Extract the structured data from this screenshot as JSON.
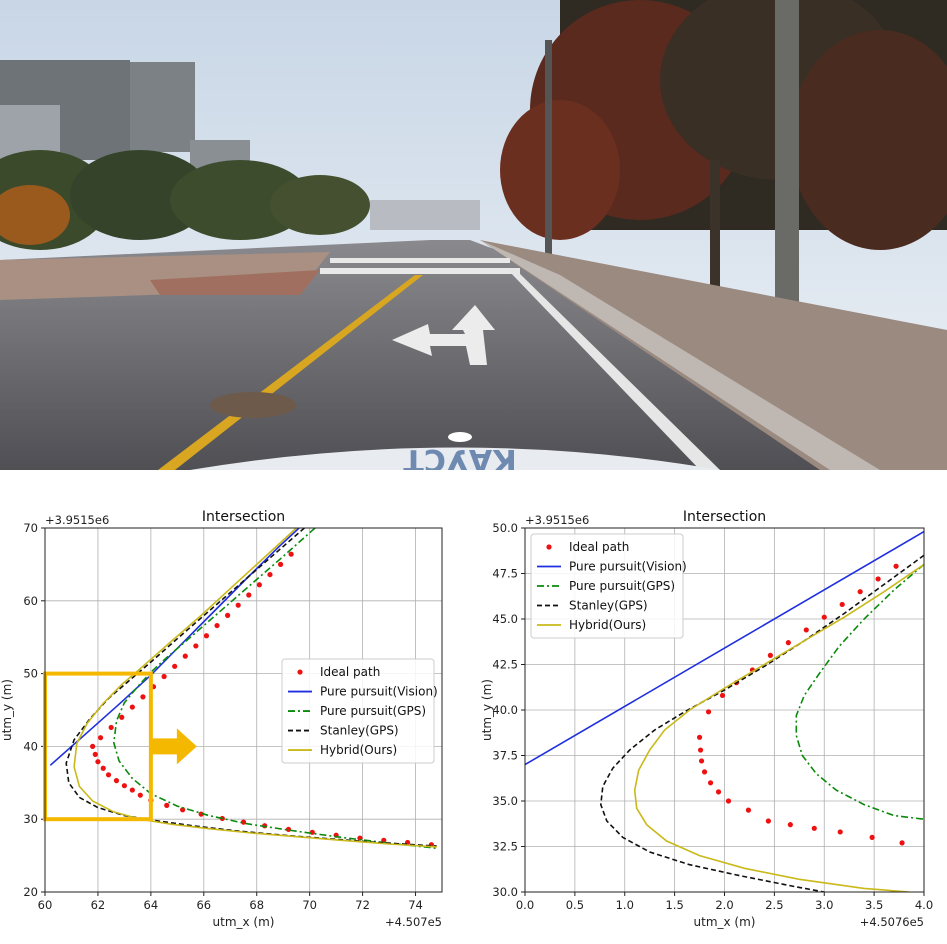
{
  "photo": {
    "road_marking_icon": "left-straight-arrow-icon",
    "vehicle_badge_text": "КАУСТ"
  },
  "chart_data": [
    {
      "type": "line",
      "title": "Intersection",
      "xlabel": "utm_x (m)",
      "ylabel": "utm_y (m)",
      "x_offset_label": "+4.507e5",
      "y_offset_label": "+3.9515e6",
      "xlim": [
        60,
        75
      ],
      "ylim": [
        20,
        70
      ],
      "xticks": [
        "60",
        "62",
        "64",
        "66",
        "68",
        "70",
        "72",
        "74"
      ],
      "yticks": [
        "20",
        "30",
        "40",
        "50",
        "60",
        "70"
      ],
      "grid": true,
      "legend_position": "center-right",
      "legend": [
        "Ideal path",
        "Pure pursuit(Vision)",
        "Pure pursuit(GPS)",
        "Stanley(GPS)",
        "Hybrid(Ours)"
      ],
      "zoom_box": {
        "x0": 60,
        "x1": 64,
        "y0": 30,
        "y1": 50,
        "color": "#f5b800"
      },
      "series": [
        {
          "name": "Ideal path",
          "style": "dots",
          "color": "#ee1111",
          "x": [
            61.8,
            61.9,
            62.0,
            62.2,
            62.4,
            62.7,
            63.0,
            63.3,
            63.6,
            64.0,
            64.6,
            65.2,
            65.9,
            66.7,
            67.5,
            68.3,
            69.2,
            70.1,
            71.0,
            71.9,
            72.8,
            73.7,
            74.6,
            62.1,
            62.5,
            62.9,
            63.3,
            63.7,
            64.1,
            64.5,
            64.9,
            65.3,
            65.7,
            66.1,
            66.5,
            66.9,
            67.3,
            67.7,
            68.1,
            68.5,
            68.9,
            69.3
          ],
          "y": [
            40.0,
            38.9,
            37.9,
            37.0,
            36.1,
            35.3,
            34.6,
            34.0,
            33.3,
            32.6,
            31.9,
            31.3,
            30.7,
            30.1,
            29.6,
            29.1,
            28.6,
            28.2,
            27.8,
            27.4,
            27.1,
            26.8,
            26.5,
            41.2,
            42.6,
            44.0,
            45.4,
            46.8,
            48.2,
            49.6,
            51.0,
            52.4,
            53.8,
            55.2,
            56.6,
            58.0,
            59.4,
            60.8,
            62.2,
            63.6,
            65.0,
            66.4
          ]
        },
        {
          "name": "Pure pursuit(Vision)",
          "style": "solid",
          "color": "#1f2fe0",
          "x": [
            60.2,
            61.5,
            62.8,
            64.0,
            65.2,
            66.4,
            67.6,
            68.8,
            69.6
          ],
          "y": [
            37.4,
            41.6,
            45.8,
            49.8,
            54.2,
            58.6,
            63.0,
            67.3,
            70.0
          ]
        },
        {
          "name": "Pure pursuit(GPS)",
          "style": "dashdot",
          "color": "#0a8a0a",
          "x": [
            70.2,
            69.0,
            67.8,
            66.6,
            65.4,
            64.6,
            64.0,
            63.5,
            63.0,
            62.7,
            62.6,
            62.8,
            63.3,
            64.0,
            65.0,
            66.2,
            67.6,
            69.2,
            71.0,
            72.8,
            74.8
          ],
          "y": [
            70.0,
            66.1,
            62.3,
            58.5,
            54.7,
            52.2,
            50.2,
            48.2,
            46.0,
            43.5,
            40.5,
            38.0,
            35.6,
            33.5,
            31.8,
            30.5,
            29.4,
            28.5,
            27.6,
            26.8,
            26.0
          ]
        },
        {
          "name": "Stanley(GPS)",
          "style": "dashed",
          "color": "#111111",
          "x": [
            69.8,
            68.6,
            67.4,
            66.2,
            65.0,
            64.0,
            63.2,
            62.4,
            61.7,
            61.1,
            60.8,
            60.9,
            61.3,
            62.0,
            63.0,
            64.2,
            65.6,
            67.2,
            69.0,
            70.8,
            72.6,
            74.8
          ],
          "y": [
            70.0,
            66.2,
            62.4,
            58.6,
            54.8,
            51.6,
            49.1,
            46.6,
            43.8,
            40.9,
            37.7,
            35.0,
            33.0,
            31.6,
            30.5,
            29.8,
            29.1,
            28.4,
            27.8,
            27.3,
            26.8,
            26.3
          ]
        },
        {
          "name": "Hybrid(Ours)",
          "style": "solid",
          "color": "#c9b91a",
          "x": [
            69.5,
            68.3,
            67.1,
            65.9,
            64.7,
            63.7,
            62.9,
            62.2,
            61.6,
            61.2,
            61.1,
            61.3,
            61.8,
            62.6,
            63.6,
            64.8,
            66.2,
            67.8,
            69.5,
            71.2,
            73.0,
            74.8
          ],
          "y": [
            70.0,
            66.0,
            62.0,
            58.0,
            54.2,
            51.0,
            48.5,
            45.9,
            43.2,
            40.4,
            37.2,
            34.5,
            32.5,
            31.0,
            30.0,
            29.3,
            28.7,
            28.1,
            27.6,
            27.1,
            26.6,
            26.2
          ]
        }
      ]
    },
    {
      "type": "line",
      "title": "Intersection",
      "xlabel": "utm_x (m)",
      "ylabel": "utm_y (m)",
      "x_offset_label": "+4.5076e5",
      "y_offset_label": "+3.9515e6",
      "xlim": [
        0,
        4
      ],
      "ylim": [
        30,
        50
      ],
      "xticks": [
        "0.0",
        "0.5",
        "1.0",
        "1.5",
        "2.0",
        "2.5",
        "3.0",
        "3.5",
        "4.0"
      ],
      "yticks": [
        "30.0",
        "32.5",
        "35.0",
        "37.5",
        "40.0",
        "42.5",
        "45.0",
        "47.5",
        "50.0"
      ],
      "grid": true,
      "legend_position": "upper-left",
      "legend": [
        "Ideal path",
        "Pure pursuit(Vision)",
        "Pure pursuit(GPS)",
        "Stanley(GPS)",
        "Hybrid(Ours)"
      ],
      "series": [
        {
          "name": "Ideal path",
          "style": "dots",
          "color": "#ee1111",
          "x": [
            1.75,
            1.76,
            1.77,
            1.8,
            1.86,
            1.94,
            2.04,
            2.24,
            2.44,
            2.66,
            2.9,
            3.16,
            3.48,
            3.78,
            1.84,
            1.98,
            2.12,
            2.28,
            2.46,
            2.64,
            2.82,
            3.0,
            3.18,
            3.36,
            3.54,
            3.72
          ],
          "y": [
            38.5,
            37.8,
            37.2,
            36.6,
            36.0,
            35.5,
            35.0,
            34.5,
            33.9,
            33.7,
            33.5,
            33.3,
            33.0,
            32.7,
            39.9,
            40.8,
            41.5,
            42.2,
            43.0,
            43.7,
            44.4,
            45.1,
            45.8,
            46.5,
            47.2,
            47.9
          ]
        },
        {
          "name": "Pure pursuit(Vision)",
          "style": "solid",
          "color": "#1f2fe0",
          "x": [
            0.0,
            4.0
          ],
          "y": [
            37.0,
            49.8
          ]
        },
        {
          "name": "Pure pursuit(GPS)",
          "style": "dashdot",
          "color": "#0a8a0a",
          "x": [
            4.0,
            3.7,
            3.4,
            3.15,
            2.95,
            2.8,
            2.72,
            2.72,
            2.78,
            2.92,
            3.12,
            3.4,
            3.7,
            4.0
          ],
          "y": [
            48.0,
            46.6,
            45.0,
            43.5,
            42.0,
            40.8,
            39.7,
            38.6,
            37.5,
            36.5,
            35.6,
            34.8,
            34.2,
            34.0
          ]
        },
        {
          "name": "Stanley(GPS)",
          "style": "dashed",
          "color": "#111111",
          "x": [
            4.0,
            3.6,
            3.2,
            2.8,
            2.4,
            2.0,
            1.6,
            1.3,
            1.05,
            0.88,
            0.78,
            0.76,
            0.82,
            0.98,
            1.25,
            1.65,
            2.15,
            2.7,
            3.0
          ],
          "y": [
            48.5,
            46.9,
            45.3,
            43.8,
            42.4,
            41.1,
            39.9,
            38.9,
            37.8,
            36.8,
            35.8,
            34.8,
            33.9,
            33.0,
            32.2,
            31.5,
            30.9,
            30.3,
            30.0
          ]
        },
        {
          "name": "Hybrid(Ours)",
          "style": "solid",
          "color": "#c9b91a",
          "x": [
            4.0,
            3.6,
            3.2,
            2.8,
            2.4,
            2.0,
            1.65,
            1.4,
            1.25,
            1.14,
            1.1,
            1.12,
            1.22,
            1.42,
            1.75,
            2.2,
            2.75,
            3.4,
            3.85
          ],
          "y": [
            48.0,
            46.5,
            45.1,
            43.8,
            42.5,
            41.2,
            40.0,
            38.9,
            37.8,
            36.7,
            35.6,
            34.6,
            33.7,
            32.8,
            32.0,
            31.3,
            30.7,
            30.2,
            30.0
          ]
        }
      ]
    }
  ]
}
